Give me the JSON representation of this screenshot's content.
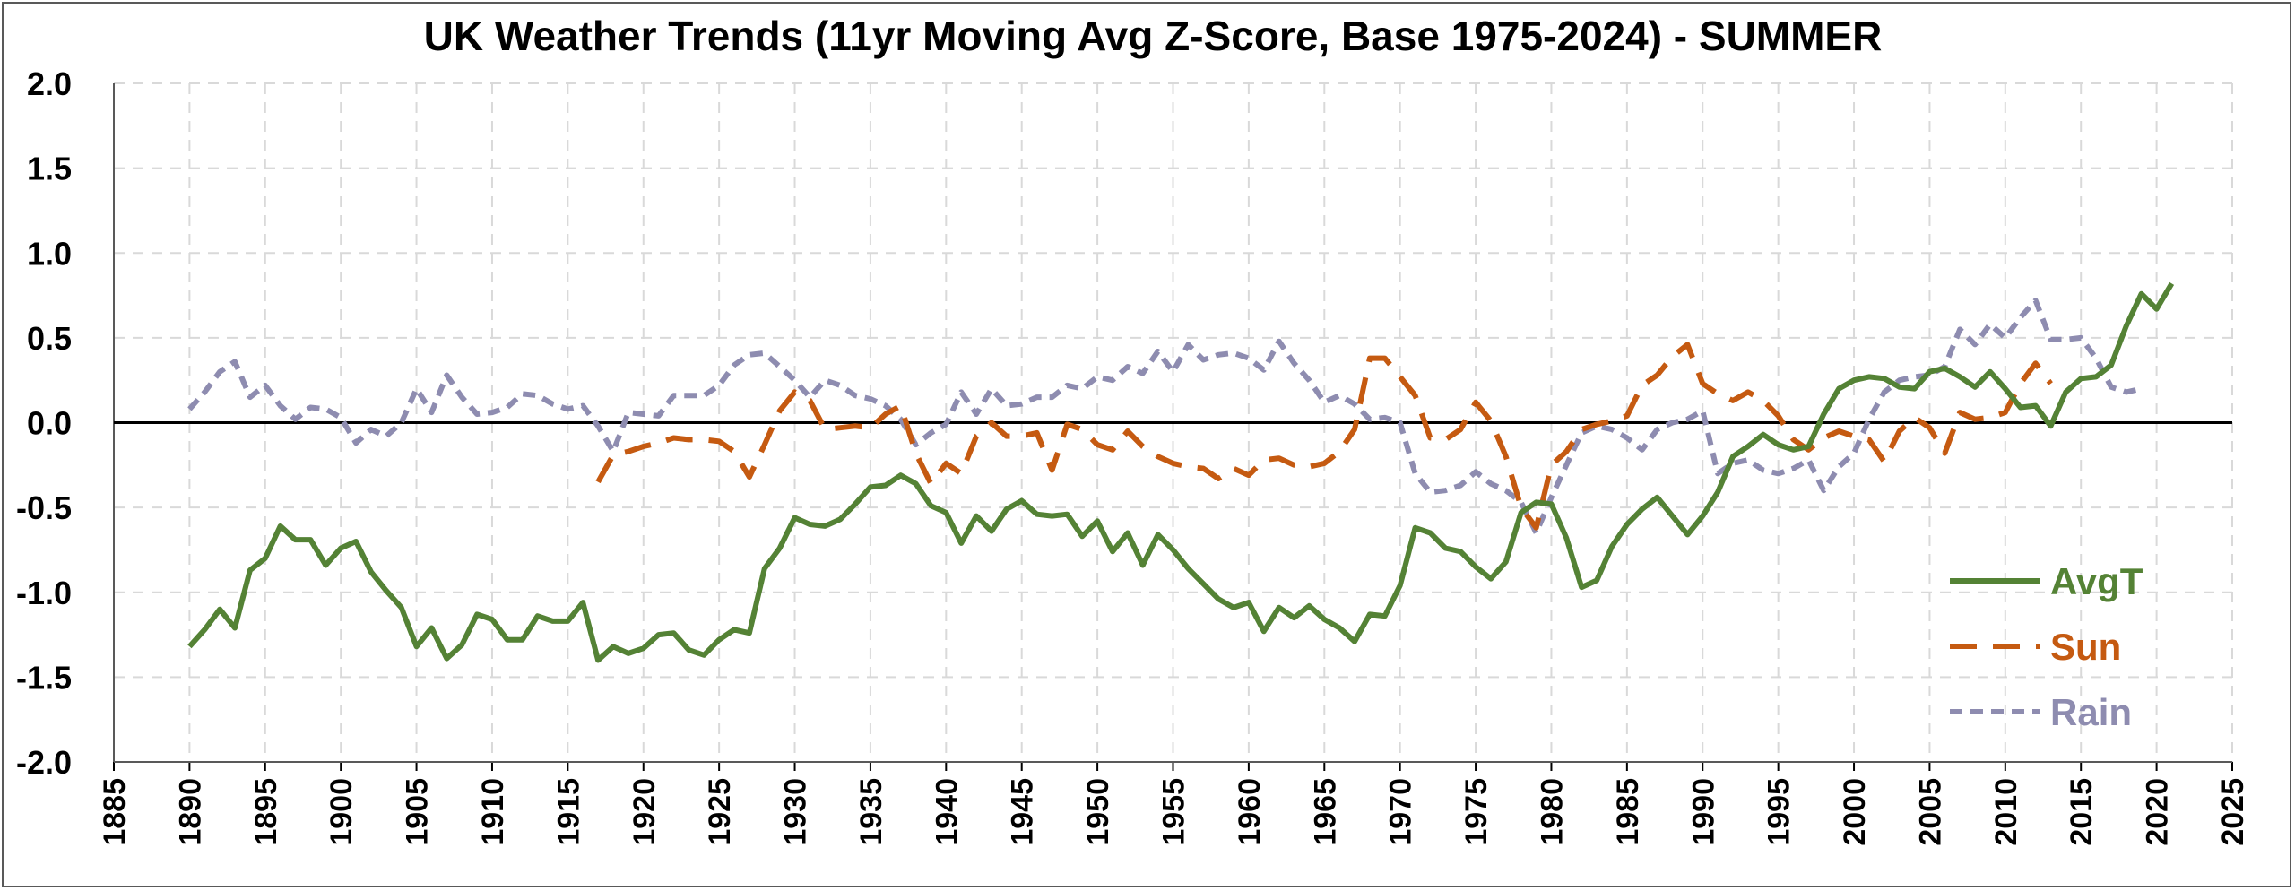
{
  "chart_data": {
    "type": "line",
    "title": "UK Weather Trends (11yr Moving Avg Z-Score, Base 1975-2024) - SUMMER",
    "xlabel": "",
    "ylabel": "",
    "xlim": [
      1885,
      2025
    ],
    "ylim": [
      -2.0,
      2.0
    ],
    "x_ticks": [
      "1885",
      "1890",
      "1895",
      "1900",
      "1905",
      "1910",
      "1915",
      "1920",
      "1925",
      "1930",
      "1935",
      "1940",
      "1945",
      "1950",
      "1955",
      "1960",
      "1965",
      "1970",
      "1975",
      "1980",
      "1985",
      "1990",
      "1995",
      "2000",
      "2005",
      "2010",
      "2015",
      "2020",
      "2025"
    ],
    "y_ticks": [
      "2.0",
      "1.5",
      "1.0",
      "0.5",
      "0.0",
      "-0.5",
      "-1.0",
      "-1.5",
      "-2.0"
    ],
    "grid": true,
    "legend_position": "bottom-right",
    "series": [
      {
        "name": "AvgT",
        "color": "#548235",
        "style": "solid",
        "start_year": 1890,
        "values": [
          -1.32,
          -1.22,
          -1.1,
          -1.21,
          -0.87,
          -0.8,
          -0.61,
          -0.69,
          -0.69,
          -0.84,
          -0.74,
          -0.7,
          -0.88,
          -0.99,
          -1.09,
          -1.32,
          -1.21,
          -1.39,
          -1.31,
          -1.13,
          -1.16,
          -1.28,
          -1.28,
          -1.14,
          -1.17,
          -1.17,
          -1.06,
          -1.4,
          -1.32,
          -1.36,
          -1.33,
          -1.25,
          -1.24,
          -1.34,
          -1.37,
          -1.28,
          -1.22,
          -1.24,
          -0.86,
          -0.74,
          -0.56,
          -0.6,
          -0.61,
          -0.57,
          -0.48,
          -0.38,
          -0.37,
          -0.31,
          -0.36,
          -0.49,
          -0.53,
          -0.71,
          -0.55,
          -0.64,
          -0.51,
          -0.46,
          -0.54,
          -0.55,
          -0.54,
          -0.67,
          -0.58,
          -0.76,
          -0.65,
          -0.84,
          -0.66,
          -0.75,
          -0.86,
          -0.95,
          -1.04,
          -1.09,
          -1.06,
          -1.23,
          -1.09,
          -1.15,
          -1.08,
          -1.16,
          -1.21,
          -1.29,
          -1.13,
          -1.14,
          -0.96,
          -0.62,
          -0.65,
          -0.74,
          -0.76,
          -0.85,
          -0.92,
          -0.82,
          -0.53,
          -0.47,
          -0.48,
          -0.68,
          -0.97,
          -0.93,
          -0.73,
          -0.6,
          -0.51,
          -0.44,
          -0.55,
          -0.66,
          -0.55,
          -0.41,
          -0.2,
          -0.14,
          -0.07,
          -0.13,
          -0.16,
          -0.14,
          0.05,
          0.2,
          0.25,
          0.27,
          0.26,
          0.21,
          0.2,
          0.3,
          0.32,
          0.27,
          0.21,
          0.3,
          0.2,
          0.09,
          0.1,
          -0.02,
          0.18,
          0.26,
          0.27,
          0.34,
          0.57,
          0.76,
          0.67,
          0.82
        ]
      },
      {
        "name": "Sun",
        "color": "#C55A11",
        "style": "long-dash",
        "start_year": 1917,
        "values": [
          -0.35,
          -0.19,
          -0.17,
          -0.14,
          -0.12,
          -0.09,
          -0.1,
          -0.1,
          -0.11,
          -0.17,
          -0.32,
          -0.13,
          0.07,
          0.18,
          0.13,
          -0.04,
          -0.03,
          -0.02,
          -0.03,
          0.05,
          0.1,
          -0.18,
          -0.36,
          -0.24,
          -0.3,
          -0.08,
          0.0,
          -0.08,
          -0.08,
          -0.06,
          -0.28,
          -0.01,
          -0.04,
          -0.13,
          -0.16,
          -0.05,
          -0.14,
          -0.2,
          -0.24,
          -0.26,
          -0.27,
          -0.33,
          -0.27,
          -0.31,
          -0.22,
          -0.21,
          -0.25,
          -0.26,
          -0.24,
          -0.17,
          -0.04,
          0.38,
          0.38,
          0.27,
          0.16,
          -0.09,
          -0.1,
          -0.04,
          0.12,
          0.01,
          -0.2,
          -0.5,
          -0.62,
          -0.25,
          -0.17,
          -0.04,
          -0.01,
          0.01,
          0.04,
          0.22,
          0.28,
          0.39,
          0.46,
          0.23,
          0.17,
          0.13,
          0.18,
          0.13,
          0.04,
          -0.1,
          -0.16,
          -0.09,
          -0.05,
          -0.08,
          -0.1,
          -0.23,
          -0.05,
          0.03,
          -0.03,
          -0.18,
          0.06,
          0.02,
          0.03,
          0.06,
          0.23,
          0.35,
          0.23
        ]
      },
      {
        "name": "Rain",
        "color": "#8E8CB0",
        "style": "short-dash",
        "start_year": 1890,
        "values": [
          0.08,
          0.18,
          0.3,
          0.36,
          0.15,
          0.22,
          0.1,
          0.02,
          0.09,
          0.08,
          0.03,
          -0.12,
          -0.04,
          -0.08,
          0.0,
          0.2,
          0.06,
          0.28,
          0.15,
          0.05,
          0.06,
          0.09,
          0.17,
          0.16,
          0.11,
          0.08,
          0.1,
          -0.02,
          -0.17,
          0.06,
          0.05,
          0.04,
          0.16,
          0.16,
          0.16,
          0.22,
          0.34,
          0.4,
          0.41,
          0.33,
          0.25,
          0.15,
          0.25,
          0.22,
          0.16,
          0.14,
          0.1,
          0.02,
          -0.13,
          -0.06,
          -0.01,
          0.18,
          0.05,
          0.2,
          0.1,
          0.11,
          0.15,
          0.15,
          0.22,
          0.2,
          0.27,
          0.25,
          0.33,
          0.29,
          0.42,
          0.3,
          0.46,
          0.37,
          0.4,
          0.41,
          0.38,
          0.31,
          0.48,
          0.35,
          0.25,
          0.12,
          0.16,
          0.11,
          0.02,
          0.03,
          0.0,
          -0.3,
          -0.41,
          -0.4,
          -0.37,
          -0.29,
          -0.36,
          -0.4,
          -0.47,
          -0.65,
          -0.44,
          -0.25,
          -0.06,
          -0.02,
          -0.04,
          -0.09,
          -0.16,
          -0.04,
          0.0,
          0.02,
          0.07,
          -0.3,
          -0.24,
          -0.22,
          -0.28,
          -0.3,
          -0.27,
          -0.22,
          -0.4,
          -0.26,
          -0.18,
          0.02,
          0.18,
          0.25,
          0.27,
          0.28,
          0.33,
          0.55,
          0.46,
          0.58,
          0.5,
          0.62,
          0.72,
          0.49,
          0.49,
          0.5,
          0.38,
          0.21,
          0.18,
          0.2
        ]
      }
    ]
  }
}
